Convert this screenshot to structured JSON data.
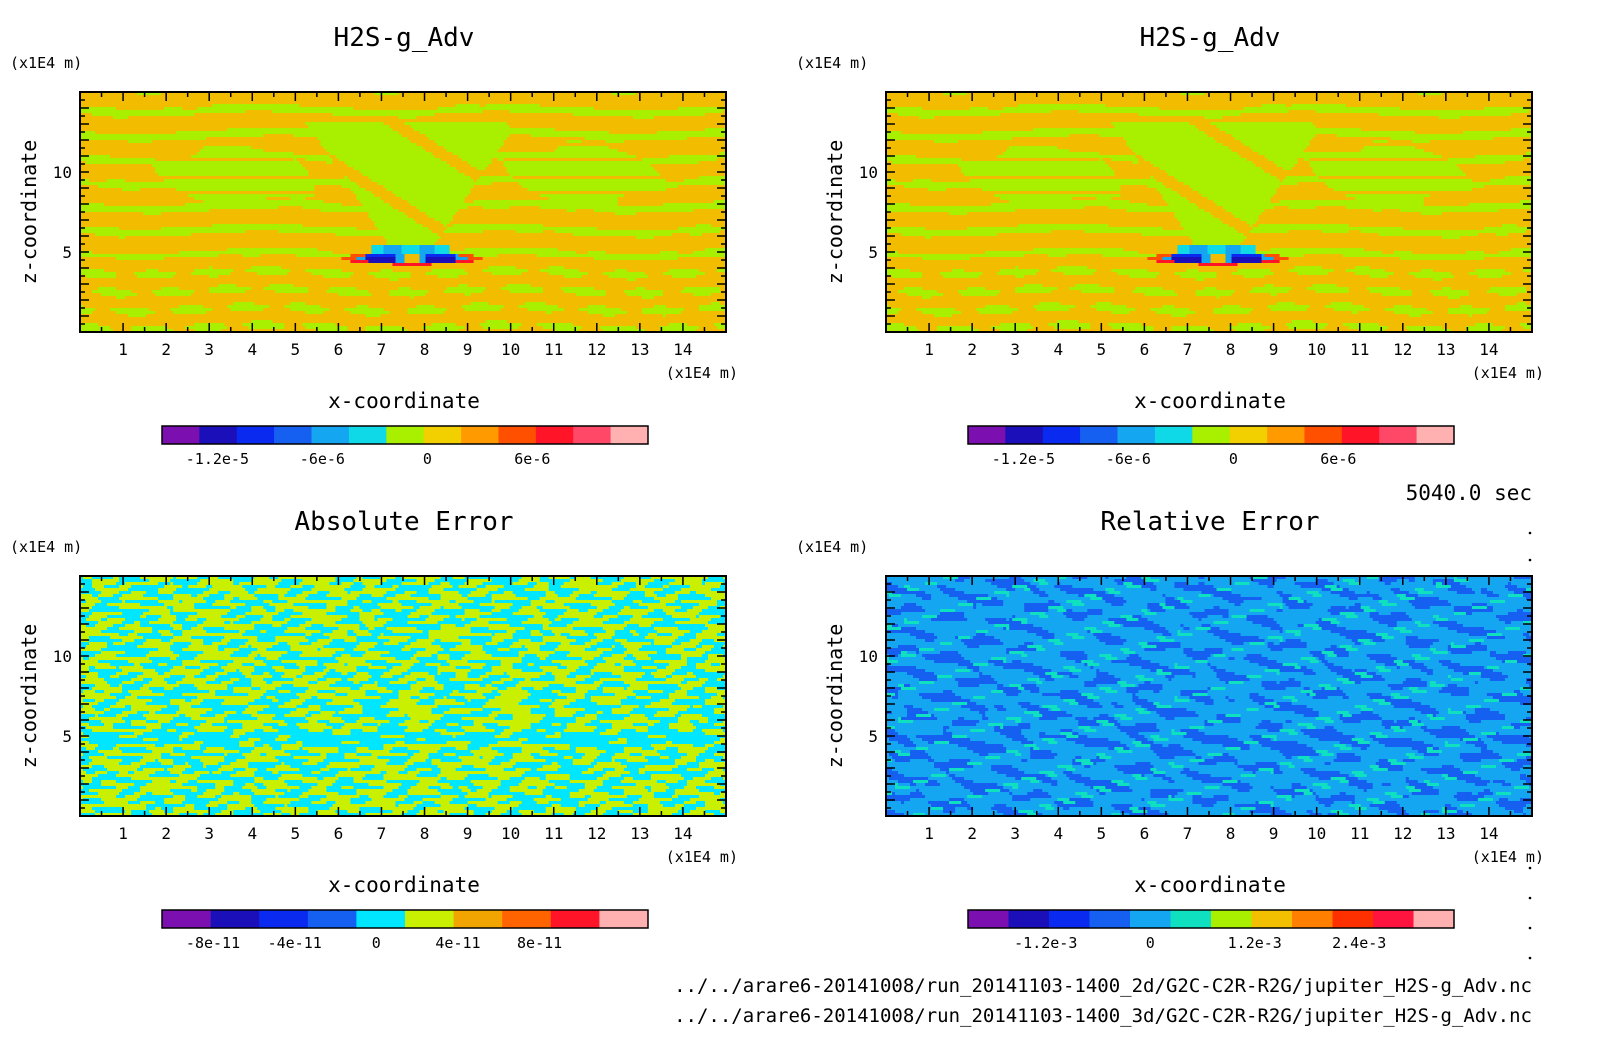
{
  "time_label": "5040.0 sec",
  "files": [
    "../../arare6-20141008/run_20141103-1400_2d/G2C-C2R-R2G/jupiter_H2S-g_Adv.nc",
    "../../arare6-20141008/run_20141103-1400_3d/G2C-C2R-R2G/jupiter_H2S-g_Adv.nc"
  ],
  "chart_data": [
    {
      "type": "heatmap",
      "title": "H2S-g_Adv",
      "xlabel": "x-coordinate",
      "ylabel": "z-coordinate",
      "x_unit": "(x1E4 m)",
      "z_unit": "(x1E4 m)",
      "xlim": [
        0,
        15
      ],
      "zlim": [
        0,
        15
      ],
      "x_ticks": [
        "1",
        "2",
        "3",
        "4",
        "5",
        "6",
        "7",
        "8",
        "9",
        "10",
        "11",
        "12",
        "13",
        "14"
      ],
      "z_ticks": [
        "5",
        "10"
      ],
      "colorbar": {
        "labels": [
          "-1.2e-5",
          "-6e-6",
          "0",
          "6e-6"
        ],
        "colors": [
          "#7b0fb0",
          "#1a0fb8",
          "#0a2af0",
          "#1560f0",
          "#14a6f0",
          "#0fd9e6",
          "#a8f000",
          "#f2d000",
          "#ff9a00",
          "#ff5000",
          "#ff1428",
          "#ff4868",
          "#ffb0b0"
        ]
      },
      "palette": "adv"
    },
    {
      "type": "heatmap",
      "title": "H2S-g_Adv",
      "xlabel": "x-coordinate",
      "ylabel": "z-coordinate",
      "x_unit": "(x1E4 m)",
      "z_unit": "(x1E4 m)",
      "xlim": [
        0,
        15
      ],
      "zlim": [
        0,
        15
      ],
      "x_ticks": [
        "1",
        "2",
        "3",
        "4",
        "5",
        "6",
        "7",
        "8",
        "9",
        "10",
        "11",
        "12",
        "13",
        "14"
      ],
      "z_ticks": [
        "5",
        "10"
      ],
      "colorbar": {
        "labels": [
          "-1.2e-5",
          "-6e-6",
          "0",
          "6e-6"
        ],
        "colors": [
          "#7b0fb0",
          "#1a0fb8",
          "#0a2af0",
          "#1560f0",
          "#14a6f0",
          "#0fd9e6",
          "#a8f000",
          "#f2d000",
          "#ff9a00",
          "#ff5000",
          "#ff1428",
          "#ff4868",
          "#ffb0b0"
        ]
      },
      "palette": "adv"
    },
    {
      "type": "heatmap",
      "title": "Absolute Error",
      "xlabel": "x-coordinate",
      "ylabel": "z-coordinate",
      "x_unit": "(x1E4 m)",
      "z_unit": "(x1E4 m)",
      "xlim": [
        0,
        15
      ],
      "zlim": [
        0,
        15
      ],
      "x_ticks": [
        "1",
        "2",
        "3",
        "4",
        "5",
        "6",
        "7",
        "8",
        "9",
        "10",
        "11",
        "12",
        "13",
        "14"
      ],
      "z_ticks": [
        "5",
        "10"
      ],
      "colorbar": {
        "labels": [
          "-8e-11",
          "-4e-11",
          "0",
          "4e-11",
          "8e-11"
        ],
        "colors": [
          "#7b0fb0",
          "#1a0fb8",
          "#0a2af0",
          "#1560f0",
          "#00e6ff",
          "#c8f000",
          "#f2a400",
          "#ff6400",
          "#ff1428",
          "#ffb0b0"
        ]
      },
      "palette": "abs"
    },
    {
      "type": "heatmap",
      "title": "Relative Error",
      "xlabel": "x-coordinate",
      "ylabel": "z-coordinate",
      "x_unit": "(x1E4 m)",
      "z_unit": "(x1E4 m)",
      "xlim": [
        0,
        15
      ],
      "zlim": [
        0,
        15
      ],
      "x_ticks": [
        "1",
        "2",
        "3",
        "4",
        "5",
        "6",
        "7",
        "8",
        "9",
        "10",
        "11",
        "12",
        "13",
        "14"
      ],
      "z_ticks": [
        "5",
        "10"
      ],
      "colorbar": {
        "labels": [
          "-1.2e-3",
          "0",
          "1.2e-3",
          "2.4e-3"
        ],
        "colors": [
          "#7b0fb0",
          "#1a0fb8",
          "#0a2af0",
          "#1560f0",
          "#14a6f0",
          "#0fe0c0",
          "#a8f000",
          "#f2c000",
          "#ff8000",
          "#ff3000",
          "#ff1440",
          "#ffb0b0"
        ]
      },
      "palette": "rel"
    }
  ]
}
